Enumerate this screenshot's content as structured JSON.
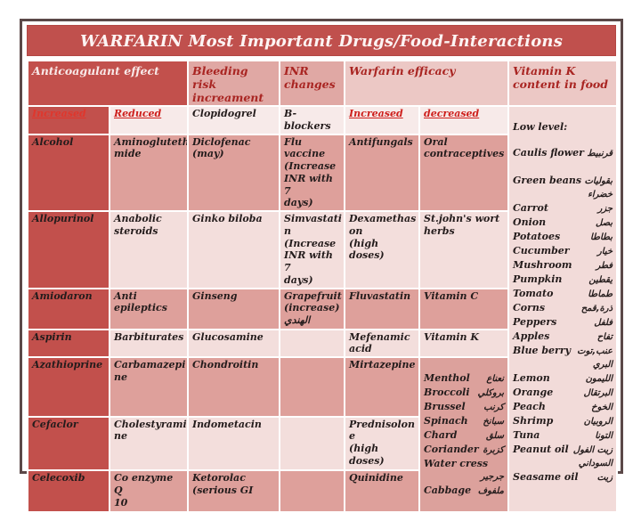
{
  "title": "WARFARIN Most Important Drugs/Food-Interactions",
  "colors": {
    "frame_border": "#5b4848",
    "dark_red": "#c0504d",
    "header_pink_dark": "#e0a8a4",
    "header_pink_light": "#ecc8c5",
    "band_medium": "#dea09b",
    "band_light": "#f3dedc",
    "vitamin_k_cell": "#f2dbd9",
    "red_header_text": "#ce1f1c",
    "body_text": "#241c1c"
  },
  "table": {
    "header1": {
      "anticoagulant": "Anticoagulant  effect",
      "bleeding": "Bleeding  risk\nincreament",
      "inr": "INR\nchanges",
      "efficacy": "Warfarin efficacy",
      "vitk": "Vitamin K\ncontent  in food"
    },
    "header2": {
      "increased": "Increased",
      "reduced": "Reduced",
      "clopidogrel": "Clopidogrel",
      "bblockers": "B-blockers",
      "eff_increased": "Increased",
      "eff_decreased": "decreased",
      "low_level": "Low level:"
    },
    "rows": [
      {
        "drug": "Alcohol",
        "reduced": "Aminogluteth\nmide",
        "bleeding": "Diclofenac\n(may)",
        "inr": "Flu\nvaccine\n(Increase\nINR with 7\ndays)",
        "eff_inc": "Antifungals",
        "eff_dec": "Oral\ncontraceptives"
      },
      {
        "drug": "Allopurinol",
        "reduced": "Anabolic\nsteroids",
        "bleeding": "Ginko biloba",
        "inr": "Simvastati\nn\n(Increase\nINR with 7\ndays)",
        "eff_inc": "Dexamethas\non\n(high doses)",
        "eff_dec": "St.john's wort\nherbs"
      },
      {
        "drug": "Amiodaron",
        "reduced": "Anti\nepileptics",
        "bleeding": "Ginseng",
        "inr": "Grapefruit\n(increase)\nالهندي",
        "eff_inc": "Fluvastatin",
        "eff_dec": "Vitamin C"
      },
      {
        "drug": "Aspirin",
        "reduced": "Barbiturates",
        "bleeding": "Glucosamine",
        "inr": "",
        "eff_inc": "Mefenamic\nacid",
        "eff_dec": "Vitamin K"
      },
      {
        "drug": "Azathioprine",
        "reduced": "Carbamazepi\nne",
        "bleeding": "Chondroitin",
        "inr": "",
        "eff_inc": "Mirtazepine",
        "eff_dec": ""
      },
      {
        "drug": "Cefaclor",
        "reduced": "Cholestyrami\nne",
        "bleeding": "Indometacin",
        "inr": "",
        "eff_inc": "Prednisolon\ne\n(high doses)",
        "eff_dec": ""
      },
      {
        "drug": "Celecoxib",
        "reduced": "Co enzyme Q\n10",
        "bleeding": "Ketorolac\n(serious GI",
        "inr": "",
        "eff_inc": "Quinidine",
        "eff_dec": ""
      }
    ]
  },
  "veggie_lines": [
    {
      "en": "Menthol",
      "ar": "نعناع"
    },
    {
      "en": "Broccoli",
      "ar": "بروكلي"
    },
    {
      "en": "Brussel",
      "ar": "كرنب"
    },
    {
      "en": "Spinach",
      "ar": "سبانخ"
    },
    {
      "en": "Chard",
      "ar": "سلق"
    },
    {
      "en": "Coriander",
      "ar": "كزبرة"
    },
    {
      "en": "Water cress",
      "ar": ""
    },
    {
      "en": "",
      "ar": "جرجير"
    },
    {
      "en": "Cabbage",
      "ar": "ملفوف"
    }
  ],
  "vitk_lines": [
    {
      "en": "Caulis flower",
      "ar": "قرنبيط"
    },
    {
      "en": "",
      "ar": ""
    },
    {
      "en": "Green beans",
      "ar": "بقوليات"
    },
    {
      "en": "",
      "ar": "خضراء"
    },
    {
      "en": "Carrot",
      "ar": "جزر"
    },
    {
      "en": "Onion",
      "ar": "بصل"
    },
    {
      "en": "Potatoes",
      "ar": "بطاطا"
    },
    {
      "en": "Cucumber",
      "ar": "خيار"
    },
    {
      "en": "Mushroom",
      "ar": "فطر"
    },
    {
      "en": "Pumpkin",
      "ar": "يقطين"
    },
    {
      "en": "Tomato",
      "ar": "طماطا"
    },
    {
      "en": "Corns",
      "ar": "ذرة,قمح"
    },
    {
      "en": "Peppers",
      "ar": "فلفل"
    },
    {
      "en": "Apples",
      "ar": "تفاح"
    },
    {
      "en": "Blue berry",
      "ar": "عنب,توت"
    },
    {
      "en": "",
      "ar": "البري"
    },
    {
      "en": "Lemon",
      "ar": "الليمون"
    },
    {
      "en": "Orange",
      "ar": "البرتقال"
    },
    {
      "en": "Peach",
      "ar": "الخوخ"
    },
    {
      "en": "Shrimp",
      "ar": "الروبيان"
    },
    {
      "en": "Tuna",
      "ar": "التونا"
    },
    {
      "en": "Peanut oil",
      "ar": "زيت الفول"
    },
    {
      "en": "",
      "ar": "السوداني"
    },
    {
      "en": "Seasame oil",
      "ar": "زيت"
    }
  ]
}
